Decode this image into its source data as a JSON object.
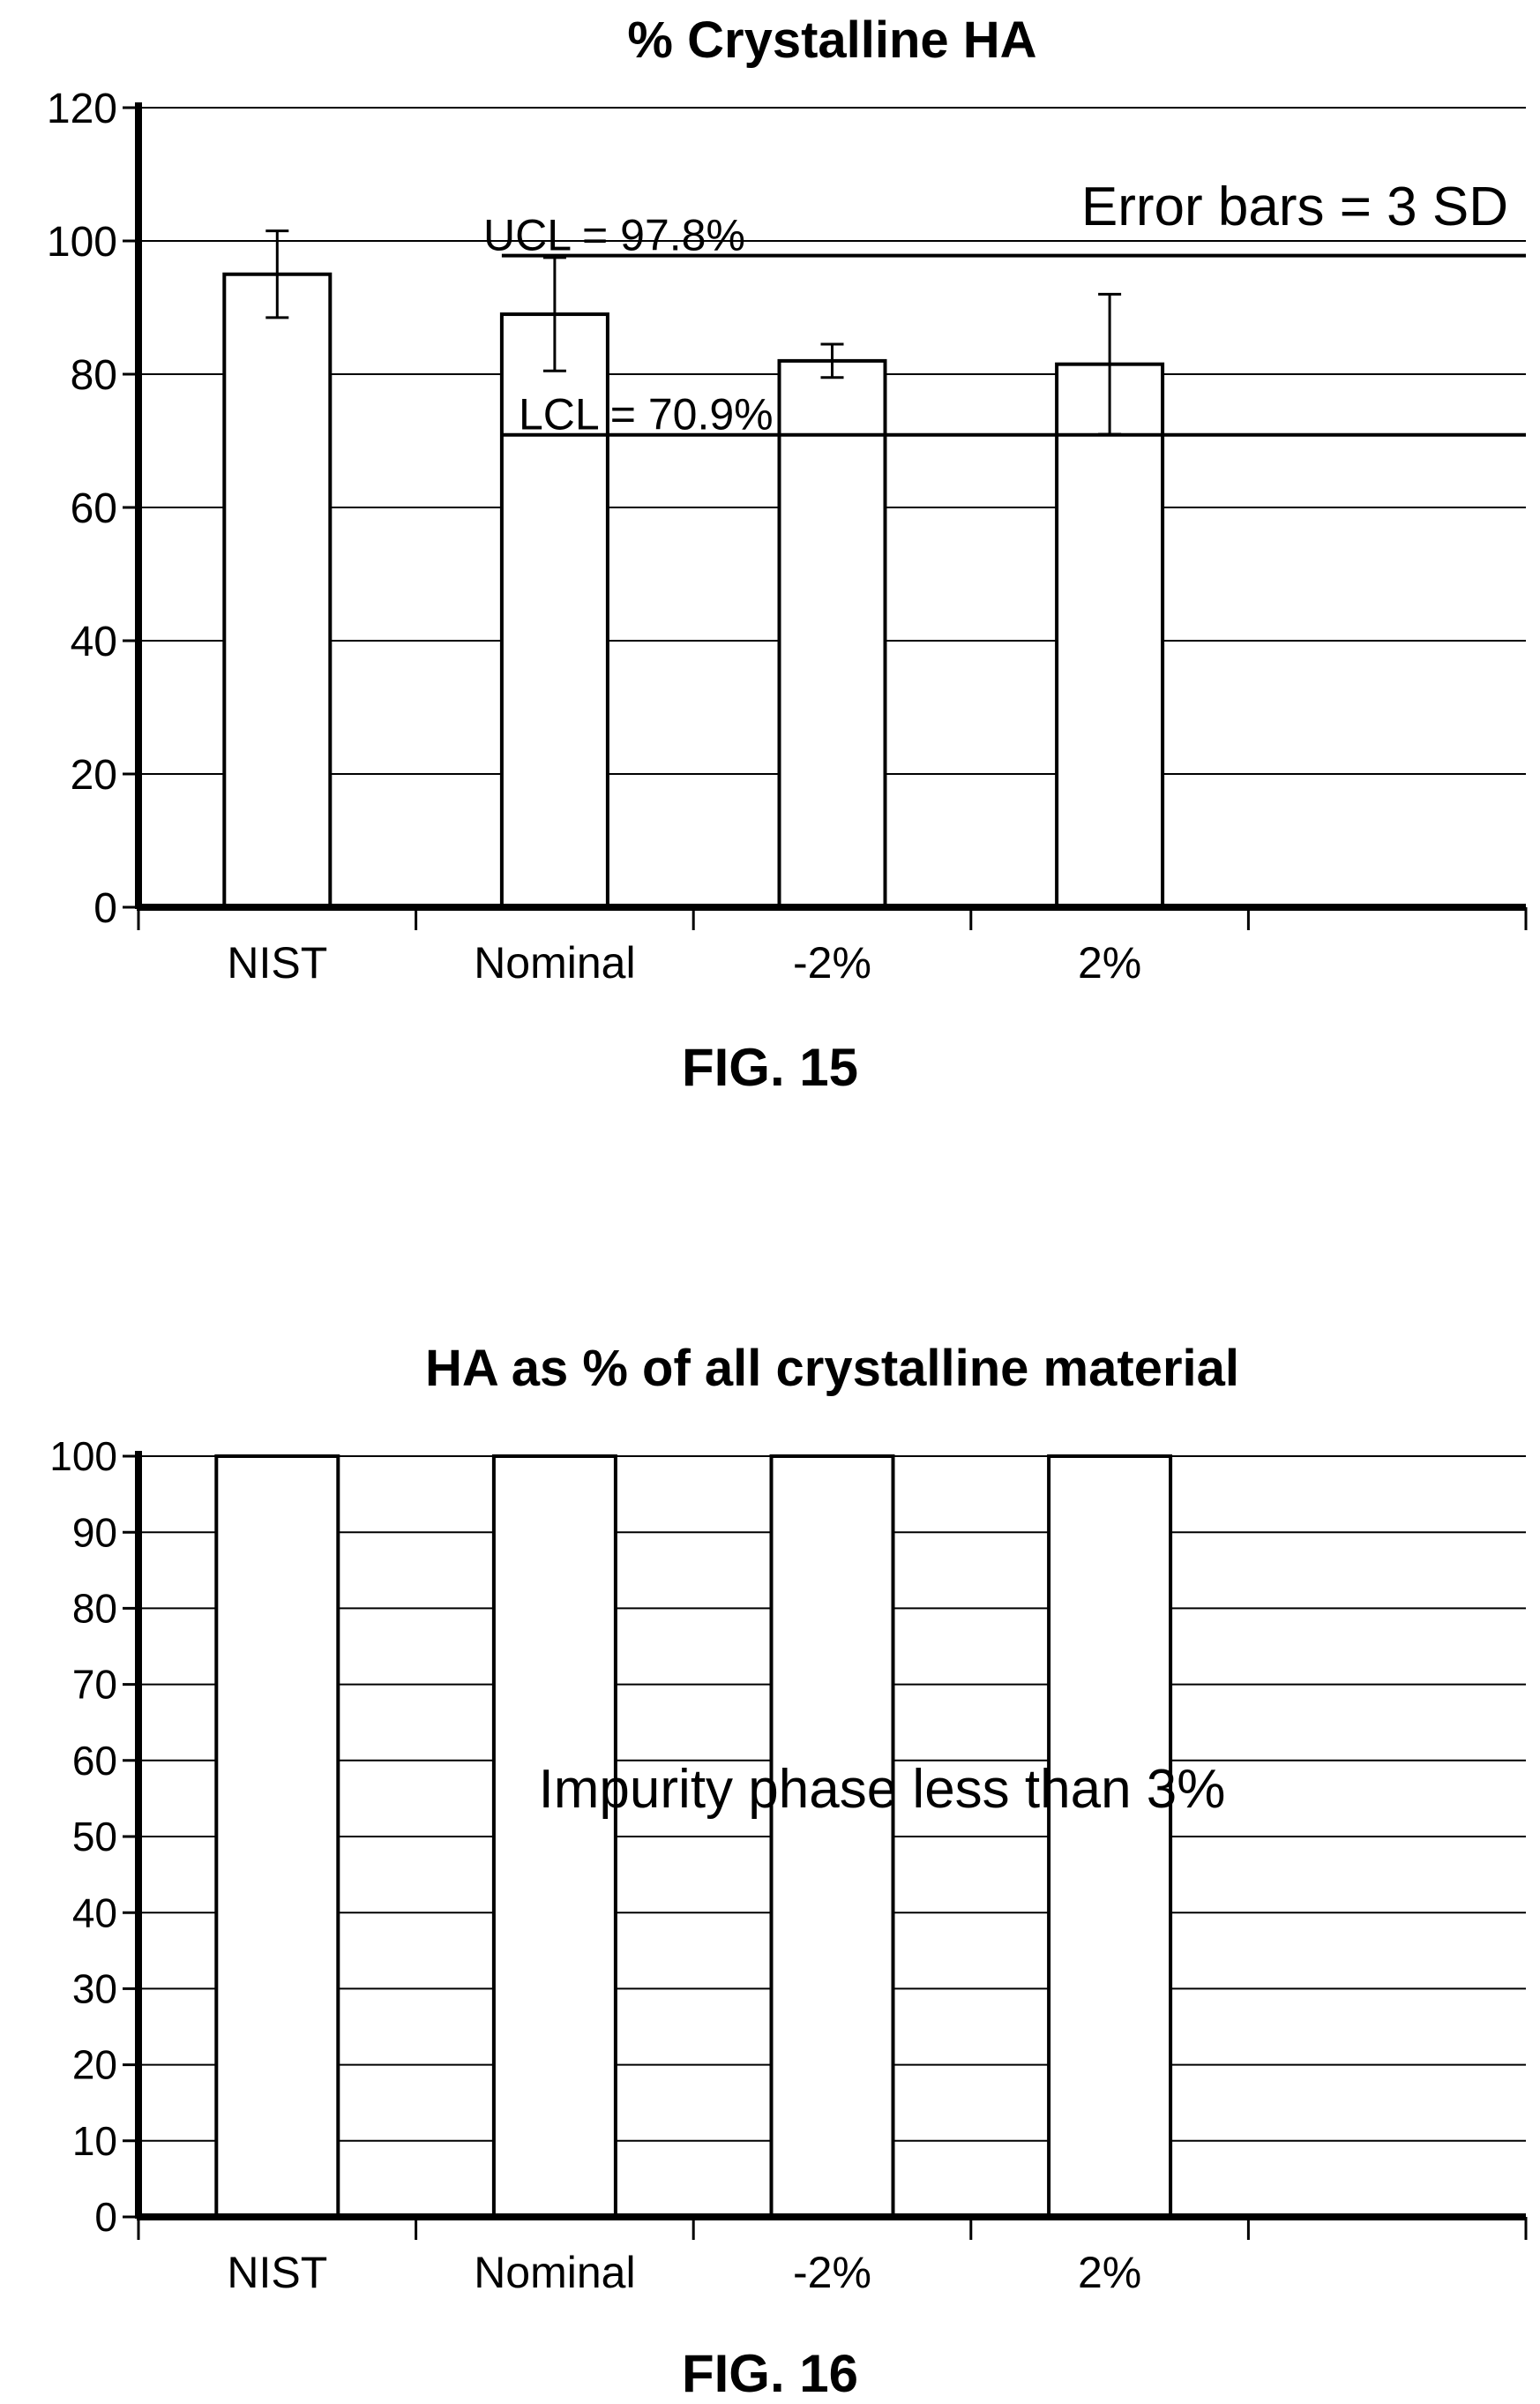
{
  "figures": [
    {
      "label": "FIG. 15"
    },
    {
      "label": "FIG. 16"
    }
  ],
  "chart_data": [
    {
      "type": "bar",
      "title": "% Crystalline HA",
      "xlabel": "",
      "ylabel": "",
      "categories": [
        "NIST",
        "Nominal",
        "-2%",
        "2%"
      ],
      "values": [
        95,
        89,
        82,
        81.5
      ],
      "error_bars": [
        {
          "low": 88.5,
          "high": 101.5
        },
        {
          "low": 80.5,
          "high": 97.5
        },
        {
          "low": 79.5,
          "high": 84.5
        },
        {
          "low": 71,
          "high": 92
        }
      ],
      "ylim": [
        0,
        120
      ],
      "yticks": [
        0,
        20,
        40,
        60,
        80,
        100,
        120
      ],
      "grid": true,
      "reference_lines": [
        {
          "label": "UCL = 97.8%",
          "value": 97.8
        },
        {
          "label": "LCL = 70.9%",
          "value": 70.9
        }
      ],
      "annotation": "Error bars = 3 SD"
    },
    {
      "type": "bar",
      "title": "HA as % of all crystalline material",
      "xlabel": "",
      "ylabel": "",
      "categories": [
        "NIST",
        "Nominal",
        "-2%",
        "2%"
      ],
      "values": [
        100,
        100,
        100,
        100
      ],
      "ylim": [
        0,
        100
      ],
      "yticks": [
        0,
        10,
        20,
        30,
        40,
        50,
        60,
        70,
        80,
        90,
        100
      ],
      "grid": true,
      "annotation": "Impurity phase less than 3%"
    }
  ]
}
